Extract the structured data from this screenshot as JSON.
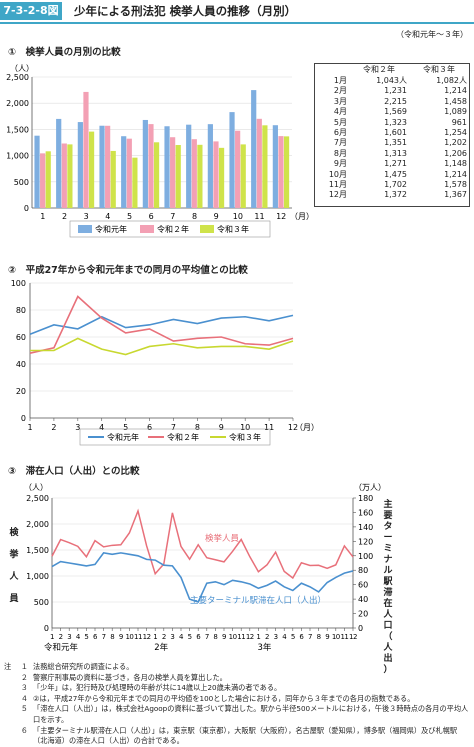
{
  "header": {
    "fig_id": "7-3-2-8図",
    "title": "少年による刑法犯 検挙人員の推移（月別）",
    "period": "（令和元年～３年）"
  },
  "colors": {
    "accent": "#3fa6c7",
    "r1": "#7eaee0",
    "r2": "#f3a0b4",
    "r3": "#cfe34a",
    "line1": "#4a90cf",
    "line2": "#e8707a",
    "line3": "#c8d830"
  },
  "sections": {
    "s1": {
      "num": "①",
      "title": "検挙人員の月別の比較"
    },
    "s2": {
      "num": "②",
      "title": "平成27年から令和元年までの同月の平均値との比較"
    },
    "s3": {
      "num": "③",
      "title": "滞在人口（人出）との比較"
    }
  },
  "table": {
    "headers": [
      "令和２年",
      "令和３年"
    ],
    "rows": [
      {
        "m": "1月",
        "a": "1,043人",
        "b": "1,082人"
      },
      {
        "m": "2月",
        "a": "1,231",
        "b": "1,214"
      },
      {
        "m": "3月",
        "a": "2,215",
        "b": "1,458"
      },
      {
        "m": "4月",
        "a": "1,569",
        "b": "1,089"
      },
      {
        "m": "5月",
        "a": "1,323",
        "b": "961"
      },
      {
        "m": "6月",
        "a": "1,601",
        "b": "1,254"
      },
      {
        "m": "7月",
        "a": "1,351",
        "b": "1,202"
      },
      {
        "m": "8月",
        "a": "1,313",
        "b": "1,206"
      },
      {
        "m": "9月",
        "a": "1,271",
        "b": "1,148"
      },
      {
        "m": "10月",
        "a": "1,475",
        "b": "1,214"
      },
      {
        "m": "11月",
        "a": "1,702",
        "b": "1,578"
      },
      {
        "m": "12月",
        "a": "1,372",
        "b": "1,367"
      }
    ]
  },
  "chart_data": [
    {
      "type": "bar",
      "unit_label": "（人）",
      "x_unit": "（月）",
      "categories": [
        "1",
        "2",
        "3",
        "4",
        "5",
        "6",
        "7",
        "8",
        "9",
        "10",
        "11",
        "12"
      ],
      "ylim": [
        0,
        2500
      ],
      "yticks": [
        "0",
        "500",
        "1,000",
        "1,500",
        "2,000",
        "2,500"
      ],
      "series": [
        {
          "name": "令和元年",
          "values": [
            1380,
            1700,
            1640,
            1570,
            1370,
            1680,
            1560,
            1590,
            1600,
            1830,
            2250,
            1580
          ]
        },
        {
          "name": "令和２年",
          "values": [
            1043,
            1231,
            2215,
            1569,
            1323,
            1601,
            1351,
            1313,
            1271,
            1475,
            1702,
            1372
          ]
        },
        {
          "name": "令和３年",
          "values": [
            1082,
            1214,
            1458,
            1089,
            961,
            1254,
            1202,
            1206,
            1148,
            1214,
            1578,
            1367
          ]
        }
      ]
    },
    {
      "type": "line",
      "categories": [
        "1",
        "2",
        "3",
        "4",
        "5",
        "6",
        "7",
        "8",
        "9",
        "10",
        "11",
        "12"
      ],
      "x_unit": "（月）",
      "ylim": [
        0,
        100
      ],
      "yticks": [
        "0",
        "20",
        "40",
        "60",
        "80",
        "100"
      ],
      "series": [
        {
          "name": "令和元年",
          "values": [
            62,
            69,
            66,
            75,
            67,
            69,
            73,
            70,
            74,
            75,
            72,
            76
          ]
        },
        {
          "name": "令和２年",
          "values": [
            48,
            52,
            90,
            74,
            63,
            66,
            57,
            59,
            60,
            55,
            54,
            59
          ]
        },
        {
          "name": "令和３年",
          "values": [
            50,
            50,
            59,
            51,
            47,
            53,
            55,
            52,
            53,
            53,
            51,
            57
          ]
        }
      ]
    },
    {
      "type": "line",
      "left_unit": "（人）",
      "right_unit": "（万人）",
      "ylim_left": [
        0,
        2500
      ],
      "ylim_right": [
        0,
        180
      ],
      "yticks_left": [
        "0",
        "500",
        "1,000",
        "1,500",
        "2,000",
        "2,500"
      ],
      "yticks_right": [
        "0",
        "20",
        "40",
        "60",
        "80",
        "100",
        "120",
        "140",
        "160",
        "180"
      ],
      "x_labels": [
        "1",
        "2",
        "3",
        "4",
        "5",
        "6",
        "7",
        "8",
        "9",
        "10",
        "11",
        "12",
        "1",
        "2",
        "3",
        "4",
        "5",
        "6",
        "7",
        "8",
        "9",
        "10",
        "11",
        "12",
        "1",
        "2",
        "3",
        "4",
        "5",
        "6",
        "7",
        "8",
        "9",
        "10",
        "11",
        "12"
      ],
      "year_labels": [
        "令和元年",
        "2年",
        "3年"
      ],
      "left_axis_title": "検挙人員",
      "right_axis_title": "主要ターミナル駅滞在人口（人出）",
      "series": [
        {
          "name": "検挙人員",
          "values": [
            1380,
            1700,
            1640,
            1570,
            1370,
            1680,
            1560,
            1590,
            1600,
            1830,
            2250,
            1580,
            1043,
            1231,
            2215,
            1569,
            1323,
            1601,
            1351,
            1313,
            1271,
            1475,
            1702,
            1372,
            1082,
            1214,
            1458,
            1089,
            961,
            1254,
            1202,
            1206,
            1148,
            1214,
            1578,
            1367
          ]
        },
        {
          "name": "主要ターミナル駅滞在人口（人出）",
          "values": [
            85,
            92,
            90,
            88,
            86,
            88,
            104,
            102,
            104,
            102,
            100,
            95,
            94,
            87,
            86,
            70,
            40,
            36,
            62,
            64,
            60,
            66,
            64,
            61,
            55,
            59,
            65,
            57,
            52,
            62,
            57,
            50,
            63,
            70,
            76,
            79
          ]
        }
      ]
    }
  ],
  "notes": [
    {
      "a": "注",
      "b": "１",
      "t": "法務総合研究所の調査による。"
    },
    {
      "a": "",
      "b": "２",
      "t": "警察庁刑事局の資料に基づき，各月の検挙人員を算出した。"
    },
    {
      "a": "",
      "b": "３",
      "t": "「少年」は，犯行時及び処理時の年齢が共に14歳以上20歳未満の者である。"
    },
    {
      "a": "",
      "b": "４",
      "t": "②は，平成27年から令和元年までの同月の平均値を100とした場合における，同年から３年までの各月の指数である。"
    },
    {
      "a": "",
      "b": "５",
      "t": "「滞在人口（人出）」は，株式会社Agoopの資料に基づいて算出した。駅から半径500メートルにおける，午後３時時点の各月の平均人口を示す。"
    },
    {
      "a": "",
      "b": "６",
      "t": "「主要ターミナル駅滞在人口（人出）」は，東京駅（東京都），大阪駅（大阪府），名古屋駅（愛知県），博多駅（福岡県）及び札幌駅（北海道）の滞在人口（人出）の合計である。"
    }
  ]
}
